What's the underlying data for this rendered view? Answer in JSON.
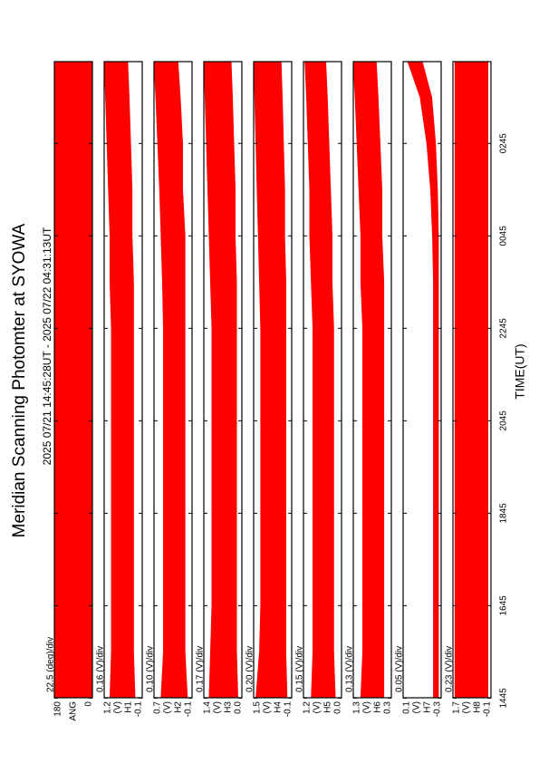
{
  "chart_data": {
    "type": "multi-panel-band",
    "title": "Meridian Scanning Photomter at SYOWA",
    "subtitle": "2025 07/21 14:45:28UT - 2025 07/22 04:31:13UT",
    "x_label": "TIME(UT)",
    "color": "#ff0000",
    "xlim": [
      14.758,
      28.52
    ],
    "xticks": [
      {
        "value": 14.75,
        "label": "1445"
      },
      {
        "value": 16.75,
        "label": "1645"
      },
      {
        "value": 18.75,
        "label": "1845"
      },
      {
        "value": 20.75,
        "label": "2045"
      },
      {
        "value": 22.75,
        "label": "2245"
      },
      {
        "value": 24.75,
        "label": "0045"
      },
      {
        "value": 26.75,
        "label": "0245"
      }
    ],
    "x": [
      14.758,
      15.75,
      16.75,
      17.75,
      18.75,
      19.75,
      20.75,
      21.75,
      22.75,
      23.75,
      24.75,
      25.75,
      26.75,
      27.75,
      28.52
    ],
    "panels": [
      {
        "scale_label": "22.5 (deg)/div",
        "name": "ANG",
        "ylim": [
          0,
          180
        ],
        "yticks": [
          0,
          180
        ],
        "lower": [
          0,
          0,
          0,
          0,
          0,
          0,
          0,
          0,
          0,
          0,
          0,
          0,
          0,
          0,
          0
        ],
        "upper": [
          180,
          180,
          180,
          180,
          180,
          180,
          180,
          180,
          180,
          180,
          180,
          180,
          180,
          180,
          180
        ]
      },
      {
        "scale_label": "0.16 (V)/div",
        "name": "H1",
        "unit": "(V)",
        "ylim": [
          -0.1,
          1.2
        ],
        "yticks": [
          -0.1,
          1.2
        ],
        "lower": [
          0.15,
          0.2,
          0.2,
          0.2,
          0.2,
          0.2,
          0.2,
          0.2,
          0.2,
          0.2,
          0.25,
          0.25,
          0.3,
          0.35,
          0.4
        ],
        "upper": [
          1.0,
          0.95,
          0.95,
          0.95,
          0.95,
          0.95,
          0.95,
          0.95,
          0.95,
          1.0,
          1.0,
          1.05,
          1.1,
          1.15,
          1.2
        ]
      },
      {
        "scale_label": "0.10 (V)/div",
        "name": "H2",
        "unit": "(V)",
        "ylim": [
          -0.1,
          0.7
        ],
        "yticks": [
          -0.1,
          0.7
        ],
        "lower": [
          0.0,
          0.05,
          0.05,
          0.05,
          0.05,
          0.05,
          0.05,
          0.05,
          0.05,
          0.05,
          0.05,
          0.1,
          0.1,
          0.15,
          0.2
        ],
        "upper": [
          0.55,
          0.5,
          0.5,
          0.5,
          0.5,
          0.5,
          0.5,
          0.5,
          0.5,
          0.52,
          0.55,
          0.58,
          0.62,
          0.66,
          0.7
        ]
      },
      {
        "scale_label": "0.17 (V)/div",
        "name": "H3",
        "unit": "(V)",
        "ylim": [
          0,
          1.4
        ],
        "yticks": [
          {
            "value": 0,
            "label": "0.0"
          },
          1.4
        ],
        "lower": [
          0.15,
          0.2,
          0.2,
          0.2,
          0.2,
          0.2,
          0.2,
          0.2,
          0.2,
          0.2,
          0.25,
          0.25,
          0.3,
          0.35,
          0.4
        ],
        "upper": [
          1.2,
          1.15,
          1.1,
          1.1,
          1.1,
          1.1,
          1.1,
          1.1,
          1.1,
          1.15,
          1.2,
          1.25,
          1.3,
          1.35,
          1.4
        ]
      },
      {
        "scale_label": "0.20 (V)/div",
        "name": "H4",
        "unit": "(V)",
        "ylim": [
          -0.1,
          1.5
        ],
        "yticks": [
          -0.1,
          1.5
        ],
        "lower": [
          0.1,
          0.15,
          0.15,
          0.15,
          0.15,
          0.15,
          0.15,
          0.15,
          0.15,
          0.15,
          0.2,
          0.2,
          0.25,
          0.3,
          0.35
        ],
        "upper": [
          1.4,
          1.25,
          1.2,
          1.2,
          1.2,
          1.2,
          1.2,
          1.2,
          1.2,
          1.25,
          1.3,
          1.35,
          1.4,
          1.45,
          1.5
        ]
      },
      {
        "scale_label": "0.15 (V)/div",
        "name": "H5",
        "unit": "(V)",
        "ylim": [
          0,
          1.2
        ],
        "yticks": [
          {
            "value": 0,
            "label": "0.0"
          },
          1.2
        ],
        "lower": [
          0.2,
          0.25,
          0.25,
          0.25,
          0.25,
          0.25,
          0.25,
          0.25,
          0.25,
          0.3,
          0.3,
          0.35,
          0.4,
          0.45,
          0.5
        ],
        "upper": [
          0.95,
          0.9,
          0.9,
          0.9,
          0.9,
          0.9,
          0.9,
          0.9,
          0.9,
          0.95,
          1.0,
          1.0,
          1.05,
          1.1,
          1.15
        ]
      },
      {
        "scale_label": "0.13 (V)/div",
        "name": "H6",
        "unit": "(V)",
        "ylim": [
          0.3,
          1.3
        ],
        "yticks": [
          0.3,
          1.3
        ],
        "lower": [
          0.5,
          0.5,
          0.5,
          0.5,
          0.5,
          0.5,
          0.5,
          0.5,
          0.5,
          0.5,
          0.55,
          0.55,
          0.6,
          0.65,
          0.7
        ],
        "upper": [
          1.1,
          1.05,
          1.05,
          1.05,
          1.05,
          1.05,
          1.05,
          1.05,
          1.05,
          1.1,
          1.1,
          1.15,
          1.2,
          1.25,
          1.3
        ]
      },
      {
        "scale_label": "0.05 (V)/div",
        "name": "H7",
        "unit": "(V)",
        "ylim": [
          -0.3,
          0.1
        ],
        "yticks": [
          -0.3,
          0.1
        ],
        "lower": [
          -0.27,
          -0.27,
          -0.27,
          -0.27,
          -0.27,
          -0.27,
          -0.27,
          -0.27,
          -0.27,
          -0.27,
          -0.27,
          -0.26,
          -0.24,
          -0.2,
          -0.1
        ],
        "upper": [
          -0.22,
          -0.22,
          -0.22,
          -0.22,
          -0.22,
          -0.22,
          -0.22,
          -0.22,
          -0.22,
          -0.22,
          -0.21,
          -0.19,
          -0.15,
          -0.08,
          0.05
        ]
      },
      {
        "scale_label": "0.23 (V)/div",
        "name": "H8",
        "unit": "(V)",
        "ylim": [
          -0.1,
          1.7
        ],
        "yticks": [
          -0.1,
          1.7
        ],
        "lower": [
          0.05,
          0.05,
          0.05,
          0.05,
          0.05,
          0.05,
          0.05,
          0.05,
          0.05,
          0.05,
          0.05,
          0.05,
          0.05,
          0.05,
          0.05
        ],
        "upper": [
          1.6,
          1.6,
          1.6,
          1.6,
          1.6,
          1.6,
          1.6,
          1.6,
          1.6,
          1.6,
          1.6,
          1.6,
          1.6,
          1.6,
          1.6
        ]
      }
    ]
  }
}
